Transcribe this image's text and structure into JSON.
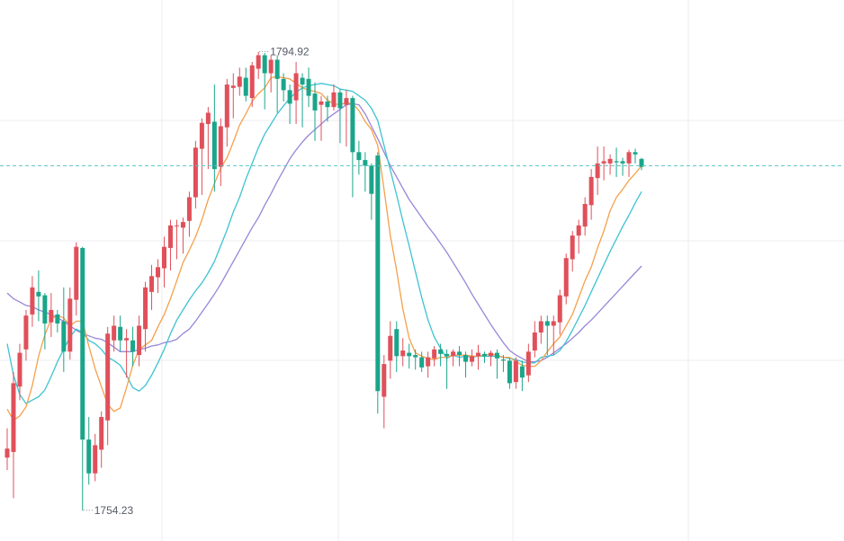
{
  "chart_data": {
    "type": "candlestick",
    "title": "",
    "xlabel": "",
    "ylabel": "",
    "ylim": [
      1751.5,
      1799.5
    ],
    "grid": true,
    "colors": {
      "up": "#e0505a",
      "down": "#1aa58a",
      "ma_fast": "#f5a04a",
      "ma_mid": "#3ec3d2",
      "ma_slow": "#9a86d8",
      "current_price_line": "#59c4c0",
      "grid": "#ececf0"
    },
    "annotations": {
      "high_label": "1794.92",
      "low_label": "1754.23",
      "high_value": 1794.92,
      "low_value": 1754.23,
      "current_price": 1784.8
    },
    "candles": [
      [
        1758.9,
        1759.7,
        1757.8,
        1761.5
      ],
      [
        1759.4,
        1765.5,
        1755.3,
        1766.5
      ],
      [
        1765.2,
        1768.2,
        1764.0,
        1769.0
      ],
      [
        1768.5,
        1771.5,
        1767.5,
        1772.0
      ],
      [
        1771.6,
        1774.0,
        1770.5,
        1775.0
      ],
      [
        1773.6,
        1773.2,
        1771.0,
        1775.5
      ],
      [
        1773.3,
        1770.8,
        1768.5,
        1773.5
      ],
      [
        1770.9,
        1772.0,
        1769.6,
        1773.5
      ],
      [
        1771.6,
        1770.8,
        1770.0,
        1772.0
      ],
      [
        1771.0,
        1768.3,
        1766.5,
        1774.0
      ],
      [
        1768.3,
        1773.0,
        1767.6,
        1774.0
      ],
      [
        1772.9,
        1777.6,
        1771.5,
        1778.0
      ],
      [
        1777.5,
        1760.5,
        1754.2,
        1777.6
      ],
      [
        1760.5,
        1757.5,
        1756.5,
        1762.5
      ],
      [
        1757.5,
        1760.0,
        1756.8,
        1761.0
      ],
      [
        1759.6,
        1762.5,
        1758.0,
        1763.0
      ],
      [
        1762.2,
        1769.9,
        1760.0,
        1770.5
      ],
      [
        1769.3,
        1770.6,
        1768.3,
        1771.5
      ],
      [
        1770.5,
        1769.3,
        1768.3,
        1771.5
      ],
      [
        1769.3,
        1769.5,
        1766.0,
        1770.3
      ],
      [
        1769.3,
        1768.3,
        1767.0,
        1770.5
      ],
      [
        1768.0,
        1770.6,
        1767.0,
        1771.5
      ],
      [
        1770.3,
        1774.0,
        1768.3,
        1774.5
      ],
      [
        1773.6,
        1775.0,
        1772.0,
        1776.0
      ],
      [
        1774.9,
        1775.8,
        1773.5,
        1776.5
      ],
      [
        1775.7,
        1777.6,
        1774.0,
        1778.5
      ],
      [
        1777.5,
        1779.5,
        1775.5,
        1780.0
      ],
      [
        1779.5,
        1779.5,
        1776.5,
        1780.0
      ],
      [
        1779.3,
        1779.8,
        1777.0,
        1780.2
      ],
      [
        1779.9,
        1782.0,
        1778.5,
        1782.5
      ],
      [
        1782.0,
        1786.4,
        1781.0,
        1787.0
      ],
      [
        1786.3,
        1788.6,
        1782.2,
        1789.0
      ],
      [
        1788.5,
        1789.5,
        1784.5,
        1790.0
      ],
      [
        1788.7,
        1784.5,
        1782.5,
        1792.0
      ],
      [
        1784.7,
        1788.3,
        1783.0,
        1789.0
      ],
      [
        1788.2,
        1792.0,
        1786.5,
        1792.5
      ],
      [
        1791.7,
        1791.9,
        1789.0,
        1793.0
      ],
      [
        1791.8,
        1792.7,
        1791.0,
        1793.5
      ],
      [
        1792.6,
        1791.0,
        1790.5,
        1793.5
      ],
      [
        1790.8,
        1793.7,
        1790.0,
        1794.0
      ],
      [
        1793.4,
        1794.6,
        1792.5,
        1794.9
      ],
      [
        1794.6,
        1793.0,
        1789.8,
        1794.8
      ],
      [
        1793.0,
        1794.2,
        1791.3,
        1794.6
      ],
      [
        1794.2,
        1792.5,
        1789.5,
        1794.6
      ],
      [
        1792.5,
        1791.5,
        1790.5,
        1793.0
      ],
      [
        1791.5,
        1790.3,
        1788.5,
        1792.0
      ],
      [
        1790.6,
        1793.0,
        1788.5,
        1794.0
      ],
      [
        1792.6,
        1792.0,
        1788.2,
        1793.0
      ],
      [
        1792.5,
        1791.0,
        1790.0,
        1793.5
      ],
      [
        1791.2,
        1789.7,
        1787.0,
        1792.2
      ],
      [
        1790.2,
        1790.5,
        1787.0,
        1791.0
      ],
      [
        1790.5,
        1790.0,
        1788.7,
        1791.0
      ],
      [
        1790.0,
        1791.3,
        1789.7,
        1792.0
      ],
      [
        1791.3,
        1789.9,
        1786.8,
        1791.6
      ],
      [
        1790.2,
        1790.8,
        1786.5,
        1791.5
      ],
      [
        1790.8,
        1786.0,
        1782.0,
        1791.0
      ],
      [
        1786.0,
        1785.3,
        1784.0,
        1787.0
      ],
      [
        1785.3,
        1784.8,
        1782.5,
        1786.0
      ],
      [
        1784.8,
        1782.3,
        1780.0,
        1785.0
      ],
      [
        1785.7,
        1764.8,
        1762.8,
        1786.0
      ],
      [
        1764.3,
        1767.2,
        1761.5,
        1768.0
      ],
      [
        1767.5,
        1769.7,
        1765.9,
        1771.0
      ],
      [
        1770.3,
        1767.9,
        1766.5,
        1771.0
      ],
      [
        1767.9,
        1768.4,
        1767.0,
        1769.5
      ],
      [
        1768.2,
        1767.9,
        1766.8,
        1769.0
      ],
      [
        1768.0,
        1767.8,
        1766.7,
        1768.5
      ],
      [
        1767.8,
        1766.9,
        1766.5,
        1768.3
      ],
      [
        1767.0,
        1767.8,
        1766.0,
        1768.3
      ],
      [
        1767.7,
        1768.5,
        1767.0,
        1768.8
      ],
      [
        1768.5,
        1768.1,
        1767.0,
        1769.0
      ],
      [
        1768.1,
        1767.9,
        1765.0,
        1768.5
      ],
      [
        1767.9,
        1768.3,
        1767.0,
        1768.5
      ],
      [
        1768.3,
        1768.0,
        1767.0,
        1768.8
      ],
      [
        1768.0,
        1767.4,
        1766.0,
        1768.3
      ],
      [
        1767.4,
        1767.9,
        1767.0,
        1768.5
      ],
      [
        1767.9,
        1768.2,
        1766.7,
        1768.9
      ],
      [
        1768.1,
        1767.9,
        1767.3,
        1768.3
      ],
      [
        1767.9,
        1768.2,
        1767.0,
        1768.4
      ],
      [
        1768.2,
        1767.7,
        1765.9,
        1768.5
      ],
      [
        1767.6,
        1767.5,
        1766.5,
        1768.0
      ],
      [
        1767.5,
        1765.5,
        1765.0,
        1767.7
      ],
      [
        1765.6,
        1767.5,
        1765.0,
        1767.8
      ],
      [
        1767.0,
        1766.0,
        1764.8,
        1767.5
      ],
      [
        1766.2,
        1768.3,
        1765.6,
        1769.0
      ],
      [
        1768.4,
        1770.0,
        1767.8,
        1771.0
      ],
      [
        1770.0,
        1771.0,
        1769.0,
        1771.5
      ],
      [
        1771.0,
        1770.6,
        1768.0,
        1771.5
      ],
      [
        1770.6,
        1771.0,
        1768.0,
        1771.5
      ],
      [
        1770.9,
        1773.3,
        1769.8,
        1773.8
      ],
      [
        1773.2,
        1776.6,
        1772.5,
        1777.0
      ],
      [
        1776.5,
        1778.6,
        1775.4,
        1779.0
      ],
      [
        1778.6,
        1779.5,
        1777.0,
        1780.0
      ],
      [
        1779.4,
        1781.4,
        1778.6,
        1782.0
      ],
      [
        1781.3,
        1783.8,
        1780.0,
        1784.5
      ],
      [
        1783.7,
        1785.0,
        1782.2,
        1786.5
      ],
      [
        1785.0,
        1785.2,
        1783.5,
        1786.5
      ],
      [
        1785.0,
        1785.4,
        1784.0,
        1785.8
      ],
      [
        1785.2,
        1785.1,
        1783.8,
        1786.4
      ],
      [
        1785.2,
        1785.0,
        1783.9,
        1785.5
      ],
      [
        1785.0,
        1786.0,
        1783.8,
        1786.2
      ],
      [
        1786.0,
        1785.8,
        1785.0,
        1786.3
      ],
      [
        1785.4,
        1784.7,
        1784.4,
        1785.5
      ]
    ],
    "ma_fast": [
      1763.2,
      1762.2,
      1762.6,
      1763.4,
      1765.3,
      1767.9,
      1769.8,
      1771.2,
      1771.5,
      1771.3,
      1770.6,
      1771.0,
      1771.0,
      1768.8,
      1766.8,
      1765.2,
      1763.6,
      1763.0,
      1763.3,
      1765.1,
      1767.1,
      1768.5,
      1768.9,
      1769.3,
      1770.5,
      1771.6,
      1773.0,
      1774.6,
      1776.2,
      1777.3,
      1778.5,
      1780.0,
      1781.8,
      1783.2,
      1784.6,
      1785.5,
      1786.9,
      1788.4,
      1789.4,
      1790.5,
      1791.2,
      1791.7,
      1792.6,
      1792.7,
      1792.6,
      1792.5,
      1792.1,
      1791.7,
      1791.5,
      1791.4,
      1791.2,
      1790.6,
      1790.3,
      1790.2,
      1790.4,
      1790.3,
      1789.7,
      1788.7,
      1788.0,
      1786.6,
      1782.7,
      1778.6,
      1775.5,
      1772.1,
      1769.5,
      1768.2,
      1767.9,
      1767.7,
      1767.6,
      1767.8,
      1767.8,
      1768.0,
      1768.0,
      1768.0,
      1767.9,
      1767.9,
      1768.0,
      1768.1,
      1768.0,
      1767.8,
      1767.8,
      1767.4,
      1767.1,
      1767.0,
      1767.0,
      1767.5,
      1768.3,
      1769.0,
      1769.6,
      1770.6,
      1771.6,
      1773.1,
      1774.6,
      1775.8,
      1777.5,
      1779.0,
      1780.8,
      1782.0,
      1782.7,
      1783.5,
      1784.1,
      1784.8
    ],
    "ma_mid": [
      1769.0,
      1766.2,
      1764.5,
      1763.7,
      1764.0,
      1764.3,
      1764.9,
      1766.1,
      1767.4,
      1768.5,
      1769.6,
      1770.3,
      1770.0,
      1769.3,
      1769.0,
      1768.5,
      1767.8,
      1767.5,
      1767.1,
      1766.2,
      1765.1,
      1764.8,
      1765.3,
      1766.2,
      1767.3,
      1768.5,
      1769.9,
      1771.1,
      1772.0,
      1772.9,
      1773.7,
      1774.4,
      1775.3,
      1776.3,
      1777.7,
      1779.1,
      1780.7,
      1782.0,
      1783.6,
      1785.0,
      1786.4,
      1787.6,
      1788.5,
      1789.4,
      1790.1,
      1790.8,
      1791.3,
      1791.7,
      1791.9,
      1792.0,
      1792.1,
      1792.0,
      1791.9,
      1791.6,
      1791.5,
      1791.4,
      1791.0,
      1790.6,
      1789.9,
      1788.8,
      1786.6,
      1784.4,
      1782.2,
      1779.9,
      1777.7,
      1775.4,
      1773.1,
      1771.1,
      1769.6,
      1768.6,
      1767.7,
      1768.0,
      1767.8,
      1767.9,
      1767.8,
      1767.9,
      1767.9,
      1767.9,
      1767.9,
      1767.8,
      1767.7,
      1767.6,
      1767.4,
      1767.3,
      1767.3,
      1767.8,
      1767.9,
      1768.0,
      1768.4,
      1769.2,
      1770.2,
      1771.3,
      1772.4,
      1773.6,
      1774.8,
      1776.0,
      1777.2,
      1778.3,
      1779.4,
      1780.4,
      1781.5,
      1782.5
    ],
    "ma_slow": [
      1773.5,
      1773.0,
      1772.7,
      1772.4,
      1772.3,
      1772.0,
      1771.8,
      1771.6,
      1771.3,
      1771.0,
      1770.6,
      1770.2,
      1769.9,
      1769.7,
      1769.5,
      1769.4,
      1769.1,
      1768.7,
      1768.3,
      1768.3,
      1768.3,
      1768.5,
      1768.6,
      1768.8,
      1768.9,
      1769.1,
      1769.2,
      1769.4,
      1769.9,
      1770.3,
      1771.0,
      1771.8,
      1772.6,
      1773.4,
      1774.3,
      1775.3,
      1776.3,
      1777.3,
      1778.3,
      1779.3,
      1780.2,
      1781.3,
      1782.3,
      1783.4,
      1784.4,
      1785.4,
      1786.2,
      1786.9,
      1787.5,
      1788.0,
      1788.5,
      1789.0,
      1789.4,
      1789.8,
      1790.2,
      1790.3,
      1790.2,
      1789.4,
      1788.3,
      1787.2,
      1786.0,
      1784.8,
      1783.8,
      1782.8,
      1781.8,
      1781.0,
      1780.2,
      1779.4,
      1778.7,
      1777.9,
      1777.1,
      1776.2,
      1775.3,
      1774.4,
      1773.4,
      1772.5,
      1771.6,
      1770.7,
      1769.9,
      1769.1,
      1768.4,
      1768.0,
      1767.7,
      1767.4,
      1767.4,
      1767.5,
      1767.8,
      1768.2,
      1768.6,
      1769.0,
      1769.5,
      1770.0,
      1770.6,
      1771.1,
      1771.7,
      1772.3,
      1772.9,
      1773.5,
      1774.1,
      1774.7,
      1775.3,
      1775.9
    ]
  }
}
